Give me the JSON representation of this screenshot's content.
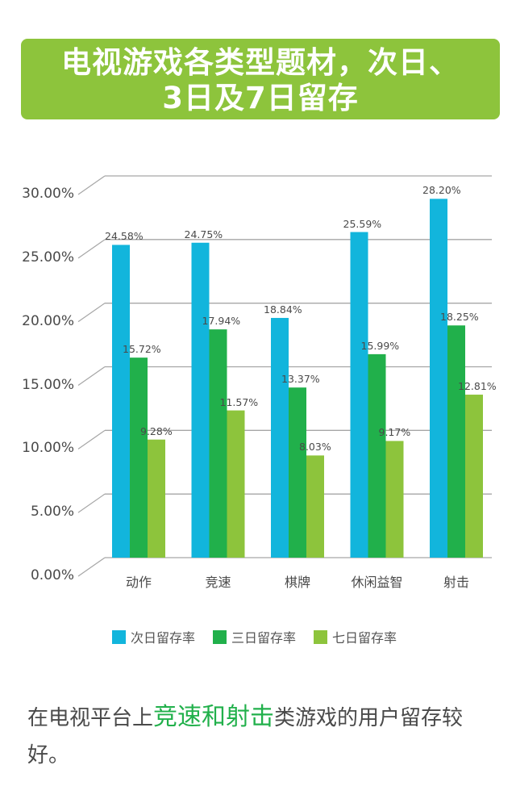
{
  "title": {
    "line1": "电视游戏各类型题材，次日、",
    "line2": "3日及7日留存"
  },
  "colors": {
    "title_bg": "#8dc43c",
    "day1": "#12b5dc",
    "day3": "#21b04b",
    "day7": "#8dc43c",
    "highlight": "#21b04b",
    "grid": "#a6a6a6"
  },
  "legend": [
    {
      "label": "次日留存率",
      "color": "#12b5dc"
    },
    {
      "label": "三日留存率",
      "color": "#21b04b"
    },
    {
      "label": "七日留存率",
      "color": "#8dc43c"
    }
  ],
  "summary": {
    "prefix": "在电视平台上",
    "highlight": "竞速和射击",
    "suffix": "类游戏的用户留存较好。"
  },
  "chart_data": {
    "type": "bar",
    "title": "电视游戏各类型题材，次日、3日及7日留存",
    "xlabel": "",
    "ylabel": "",
    "categories": [
      "动作",
      "竞速",
      "棋牌",
      "休闲益智",
      "射击"
    ],
    "series": [
      {
        "name": "次日留存率",
        "values": [
          24.58,
          24.75,
          18.84,
          25.59,
          28.2
        ],
        "labels": [
          "24.58%",
          "24.75%",
          "18.84%",
          "25.59%",
          "28.20%"
        ]
      },
      {
        "name": "三日留存率",
        "values": [
          15.72,
          17.94,
          13.37,
          15.99,
          18.25
        ],
        "labels": [
          "15.72%",
          "17.94%",
          "13.37%",
          "15.99%",
          "18.25%"
        ]
      },
      {
        "name": "七日留存率",
        "values": [
          9.28,
          11.57,
          8.03,
          9.17,
          12.81
        ],
        "labels": [
          "9.28%",
          "11.57%",
          "8.03%",
          "9.17%",
          "12.81%"
        ]
      }
    ],
    "yticks": [
      "0.00%",
      "5.00%",
      "10.00%",
      "15.00%",
      "20.00%",
      "25.00%",
      "30.00%"
    ],
    "ylim": [
      0,
      30
    ],
    "grid": true,
    "legend_position": "bottom"
  }
}
